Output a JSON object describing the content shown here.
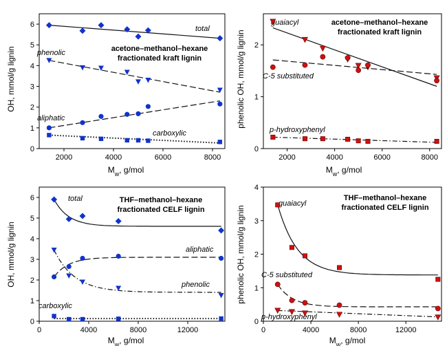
{
  "colors": {
    "red": "#cc1111",
    "blue": "#1133cc",
    "line": "#111111"
  },
  "chart_data": [
    {
      "type": "scatter",
      "title_lines": [
        "acetone–methanol–hexane",
        "fractionated kraft lignin"
      ],
      "xlabel": "Mw, g/mol",
      "ylabel": "OH, mmol/g lignin",
      "xlim": [
        1000,
        8500
      ],
      "ylim": [
        0,
        6.5
      ],
      "xticks": [
        2000,
        4000,
        6000,
        8000
      ],
      "yticks": [
        0,
        1,
        2,
        3,
        4,
        5,
        6
      ],
      "grid": false,
      "series": [
        {
          "name": "total",
          "marker": "diamond",
          "color": "blue",
          "x": [
            1400,
            2750,
            3500,
            4550,
            5000,
            5400,
            8300
          ],
          "y": [
            5.95,
            5.68,
            5.95,
            5.75,
            5.4,
            5.7,
            5.32
          ],
          "fit": {
            "kind": "linear",
            "x": [
              1400,
              8300
            ],
            "y": [
              5.95,
              5.32
            ],
            "dash": "solid"
          }
        },
        {
          "name": "phenolic",
          "marker": "triangle",
          "color": "blue",
          "x": [
            1400,
            2750,
            3500,
            4550,
            5000,
            5400,
            8300
          ],
          "y": [
            4.25,
            3.9,
            3.88,
            3.68,
            3.22,
            3.3,
            2.82
          ],
          "fit": {
            "kind": "linear",
            "x": [
              1400,
              8300
            ],
            "y": [
              4.25,
              2.72
            ],
            "dash": "long"
          }
        },
        {
          "name": "aliphatic",
          "marker": "circle",
          "color": "blue",
          "x": [
            1400,
            2750,
            3500,
            4550,
            5000,
            5400,
            8300
          ],
          "y": [
            1.0,
            1.25,
            1.55,
            1.65,
            1.68,
            2.03,
            2.15
          ],
          "fit": {
            "kind": "linear",
            "x": [
              1400,
              8300
            ],
            "y": [
              1.0,
              2.3
            ],
            "dash": "long"
          }
        },
        {
          "name": "carboxylic",
          "marker": "square",
          "color": "blue",
          "x": [
            1400,
            2750,
            3500,
            4550,
            5000,
            5400,
            8300
          ],
          "y": [
            0.65,
            0.5,
            0.47,
            0.4,
            0.4,
            0.38,
            0.32
          ],
          "fit": {
            "kind": "linear",
            "x": [
              1400,
              8300
            ],
            "y": [
              0.65,
              0.27
            ],
            "dash": "dot"
          }
        }
      ]
    },
    {
      "type": "scatter",
      "title_lines": [
        "acetone–methanol–hexane",
        "fractionated kraft lignin"
      ],
      "xlabel": "Mw, g/mol",
      "ylabel": "phenolic OH, mmol/g lignin",
      "xlim": [
        1000,
        8500
      ],
      "ylim": [
        0,
        2.6
      ],
      "xticks": [
        2000,
        4000,
        6000,
        8000
      ],
      "yticks": [
        0,
        1,
        2
      ],
      "grid": false,
      "series": [
        {
          "name": "guaiacyl",
          "marker": "triangle",
          "color": "red",
          "x": [
            1400,
            2750,
            3500,
            4550,
            5000,
            5400,
            8300
          ],
          "y": [
            2.45,
            2.1,
            1.93,
            1.72,
            1.6,
            1.57,
            1.36
          ],
          "fit": {
            "kind": "linear",
            "x": [
              1400,
              8300
            ],
            "y": [
              2.33,
              1.2
            ],
            "dash": "solid"
          }
        },
        {
          "name": "C-5 substituted",
          "marker": "circle",
          "color": "red",
          "x": [
            1400,
            2750,
            3500,
            4550,
            5000,
            5400,
            8300
          ],
          "y": [
            1.57,
            1.61,
            1.77,
            1.75,
            1.51,
            1.61,
            1.31
          ],
          "fit": {
            "kind": "linear",
            "x": [
              1400,
              8300
            ],
            "y": [
              1.71,
              1.43
            ],
            "dash": "long"
          }
        },
        {
          "name": "p-hydroxyphenyl",
          "marker": "square",
          "color": "red",
          "x": [
            1400,
            2750,
            3500,
            4550,
            5000,
            5400,
            8300
          ],
          "y": [
            0.22,
            0.19,
            0.19,
            0.18,
            0.15,
            0.14,
            0.14
          ],
          "fit": {
            "kind": "linear",
            "x": [
              1400,
              8300
            ],
            "y": [
              0.22,
              0.12
            ],
            "dash": "dashdot"
          }
        }
      ]
    },
    {
      "type": "scatter",
      "title_lines": [
        "THF–methanol–hexane",
        "fractionated CELF lignin"
      ],
      "xlabel": "Mw, g/mol",
      "ylabel": "OH, mmol/g lignin",
      "xlim": [
        0,
        15000
      ],
      "ylim": [
        0,
        6.5
      ],
      "xticks": [
        0,
        4000,
        8000,
        12000
      ],
      "yticks": [
        0,
        1,
        2,
        3,
        4,
        5,
        6
      ],
      "grid": false,
      "series": [
        {
          "name": "total",
          "marker": "diamond",
          "color": "blue",
          "x": [
            1200,
            2400,
            3500,
            6400,
            14700
          ],
          "y": [
            5.9,
            4.95,
            5.1,
            4.85,
            4.4
          ],
          "fit": {
            "kind": "decay",
            "a": 4.6,
            "b": 1.3,
            "k": 0.00085,
            "x0": 1200,
            "x1": 14700,
            "dash": "solid"
          }
        },
        {
          "name": "aliphatic",
          "marker": "circle",
          "color": "blue",
          "x": [
            1200,
            2400,
            3500,
            6400,
            14700
          ],
          "y": [
            2.15,
            2.65,
            3.05,
            3.15,
            3.05
          ],
          "fit": {
            "kind": "decay",
            "a": 3.1,
            "b": -0.95,
            "k": 0.00085,
            "x0": 1200,
            "x1": 14700,
            "dash": "long"
          }
        },
        {
          "name": "phenolic",
          "marker": "triangle",
          "color": "blue",
          "x": [
            1200,
            2400,
            3500,
            6400,
            14700
          ],
          "y": [
            3.45,
            2.2,
            1.9,
            1.6,
            1.25
          ],
          "fit": {
            "kind": "decay",
            "a": 1.4,
            "b": 2.05,
            "k": 0.0006,
            "x0": 1200,
            "x1": 14700,
            "dash": "dashdot"
          }
        },
        {
          "name": "carboxylic",
          "marker": "square",
          "color": "blue",
          "x": [
            1200,
            2400,
            3500,
            6400,
            14700
          ],
          "y": [
            0.25,
            0.1,
            0.1,
            0.12,
            0.13
          ],
          "fit": {
            "kind": "linear",
            "x": [
              1200,
              14700
            ],
            "y": [
              0.13,
              0.13
            ],
            "dash": "dot"
          }
        }
      ]
    },
    {
      "type": "scatter",
      "title_lines": [
        "THF–methanol–hexane",
        "fractionated CELF lignin"
      ],
      "xlabel": "Mw, g/mol",
      "ylabel": "phenolic OH, mmol/g lignin",
      "xlim": [
        0,
        15000
      ],
      "ylim": [
        0,
        4
      ],
      "xticks": [
        0,
        4000,
        8000,
        12000
      ],
      "yticks": [
        0,
        1,
        2,
        3,
        4
      ],
      "grid": false,
      "series": [
        {
          "name": "guaiacyl",
          "marker": "square",
          "color": "red",
          "x": [
            1200,
            2400,
            3500,
            6400,
            14700
          ],
          "y": [
            3.47,
            2.2,
            1.95,
            1.6,
            1.25
          ],
          "fit": {
            "kind": "decay",
            "a": 1.38,
            "b": 2.1,
            "k": 0.0006,
            "x0": 1200,
            "x1": 14700,
            "dash": "solid"
          }
        },
        {
          "name": "C-5 substituted",
          "marker": "circle",
          "color": "red",
          "x": [
            1200,
            2400,
            3500,
            6400,
            14700
          ],
          "y": [
            1.1,
            0.62,
            0.55,
            0.48,
            0.38
          ],
          "fit": {
            "kind": "decay",
            "a": 0.43,
            "b": 0.67,
            "k": 0.0008,
            "x0": 1200,
            "x1": 14700,
            "dash": "long"
          }
        },
        {
          "name": "p-hydroxyphenyl",
          "marker": "triangle",
          "color": "red",
          "x": [
            1200,
            2400,
            3500,
            6400,
            14700
          ],
          "y": [
            0.32,
            0.28,
            0.24,
            0.2,
            0.12
          ],
          "fit": {
            "kind": "linear",
            "x": [
              1200,
              14700
            ],
            "y": [
              0.32,
              0.13
            ],
            "dash": "dashdot"
          }
        }
      ]
    }
  ]
}
